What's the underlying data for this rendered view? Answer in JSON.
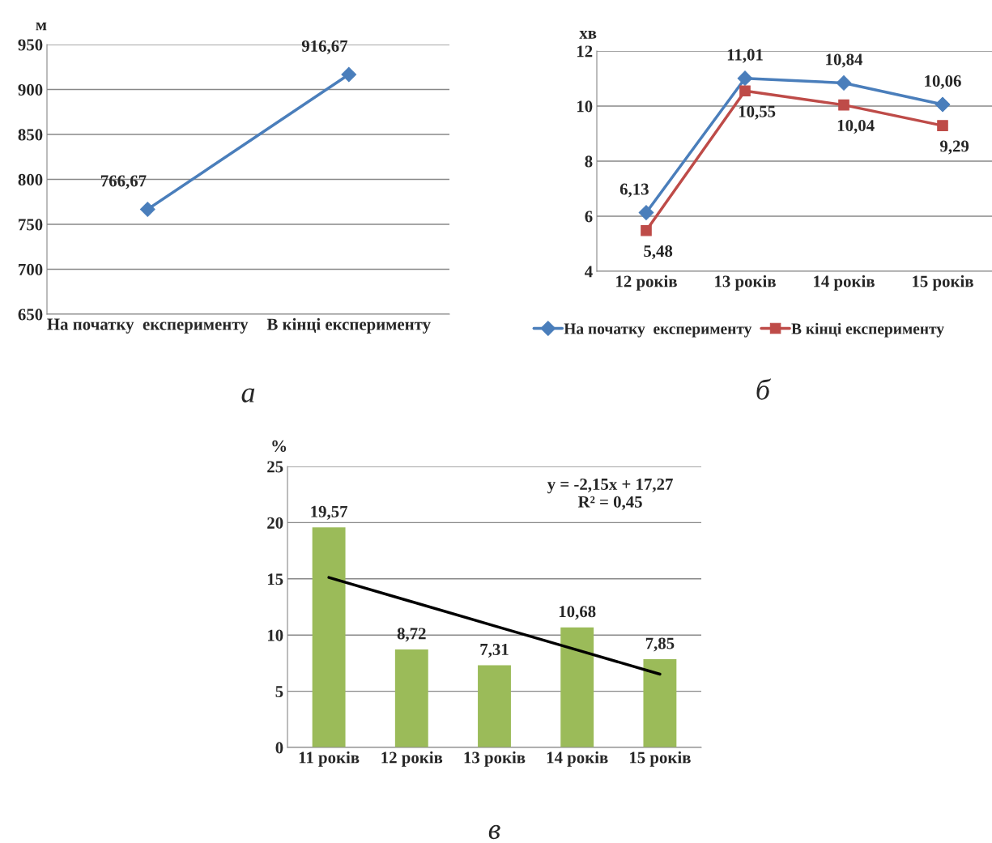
{
  "chart_data": [
    {
      "type": "line",
      "ylabel": "м",
      "categories": [
        "На початку  експерименту",
        "В кінці експерименту"
      ],
      "ylim": [
        650,
        950
      ],
      "yticks": [
        650,
        700,
        750,
        800,
        850,
        900,
        950
      ],
      "grid": "y",
      "marker": "diamond",
      "legend": false,
      "annotations": [
        "а"
      ],
      "series": [
        {
          "color": "#4a7ebb",
          "values": [
            766.67,
            916.67
          ],
          "value_labels": [
            "766,67",
            "916,67"
          ]
        }
      ]
    },
    {
      "type": "line",
      "ylabel": "хв",
      "categories": [
        "12 років",
        "13 років",
        "14 років",
        "15 років"
      ],
      "ylim": [
        4,
        12
      ],
      "yticks": [
        4,
        6,
        8,
        10,
        12
      ],
      "grid": "y",
      "legend": "bottom",
      "annotations": [
        "б"
      ],
      "series": [
        {
          "name": "На початку  експерименту",
          "color": "#4a7ebb",
          "marker": "diamond",
          "values": [
            6.13,
            11.01,
            10.84,
            10.06
          ],
          "value_labels": [
            "6,13",
            "11,01",
            "10,84",
            "10,06"
          ]
        },
        {
          "name": "В кінці експерименту",
          "color": "#be4b48",
          "marker": "square",
          "values": [
            5.48,
            10.55,
            10.04,
            9.29
          ],
          "value_labels": [
            "5,48",
            "10,55",
            "10,04",
            "9,29"
          ]
        }
      ]
    },
    {
      "type": "bar",
      "ylabel": "%",
      "categories": [
        "11 років",
        "12 років",
        "13 років",
        "14 років",
        "15 років"
      ],
      "ylim": [
        0,
        25
      ],
      "yticks": [
        0,
        5,
        10,
        15,
        20,
        25
      ],
      "grid": "y",
      "legend": false,
      "annotations": [
        "y = -2,15x + 17,27\nR² = 0,45",
        "в"
      ],
      "series": [
        {
          "type": "bar",
          "color": "#9bbb59",
          "values": [
            19.57,
            8.72,
            7.31,
            10.68,
            7.85
          ],
          "value_labels": [
            "19,57",
            "8,72",
            "7,31",
            "10,68",
            "7,85"
          ]
        },
        {
          "type": "line",
          "color": "#000000",
          "marker": "none",
          "values": [
            15.12,
            12.97,
            10.82,
            8.67,
            6.52
          ]
        }
      ]
    }
  ]
}
